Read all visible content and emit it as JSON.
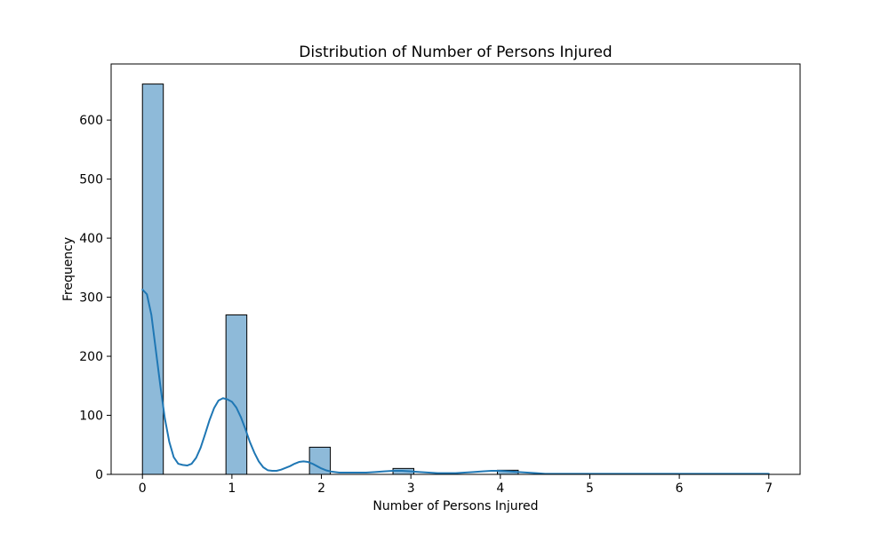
{
  "chart_data": {
    "type": "bar",
    "subtype": "histogram-with-kde",
    "title": "Distribution of Number of Persons Injured",
    "xlabel": "Number of Persons Injured",
    "ylabel": "Frequency",
    "xlim": [
      -0.35,
      7.35
    ],
    "ylim": [
      0,
      695
    ],
    "x_ticks": [
      0,
      1,
      2,
      3,
      4,
      5,
      6,
      7
    ],
    "y_ticks": [
      0,
      100,
      200,
      300,
      400,
      500,
      600
    ],
    "bin_width": 0.2333,
    "bins": [
      {
        "start": 0.0,
        "end": 0.2333,
        "value": 661
      },
      {
        "start": 0.9333,
        "end": 1.1667,
        "value": 270
      },
      {
        "start": 1.8667,
        "end": 2.1,
        "value": 46
      },
      {
        "start": 2.8,
        "end": 3.0333,
        "value": 10
      },
      {
        "start": 3.9667,
        "end": 4.2,
        "value": 7
      }
    ],
    "kde": {
      "x": [
        0.0,
        0.05,
        0.1,
        0.15,
        0.2,
        0.25,
        0.3,
        0.35,
        0.4,
        0.45,
        0.5,
        0.55,
        0.6,
        0.65,
        0.7,
        0.75,
        0.8,
        0.85,
        0.9,
        0.95,
        1.0,
        1.05,
        1.1,
        1.15,
        1.2,
        1.25,
        1.3,
        1.35,
        1.4,
        1.45,
        1.5,
        1.55,
        1.6,
        1.65,
        1.7,
        1.75,
        1.8,
        1.85,
        1.9,
        1.95,
        2.0,
        2.05,
        2.1,
        2.15,
        2.2,
        2.3,
        2.4,
        2.5,
        2.6,
        2.7,
        2.8,
        2.9,
        3.0,
        3.1,
        3.2,
        3.3,
        3.4,
        3.5,
        3.6,
        3.7,
        3.8,
        3.9,
        4.0,
        4.1,
        4.2,
        4.3,
        4.4,
        4.5,
        4.75,
        5.0,
        5.25,
        5.5,
        5.75,
        6.0,
        6.25,
        6.5,
        6.75,
        7.0
      ],
      "y": [
        313,
        305,
        270,
        210,
        150,
        95,
        55,
        29,
        18,
        16,
        15,
        18,
        28,
        45,
        68,
        92,
        112,
        125,
        129,
        127,
        123,
        113,
        97,
        77,
        55,
        37,
        22,
        12,
        7,
        6,
        6,
        8,
        11,
        14,
        18,
        21,
        22,
        21,
        18,
        14,
        10,
        7,
        5,
        4,
        3,
        3,
        3,
        3,
        4,
        5,
        6,
        6,
        5,
        4,
        3,
        2,
        2,
        2,
        3,
        4,
        5,
        6,
        6,
        5,
        4,
        3,
        2,
        1,
        1,
        1,
        1,
        1,
        1,
        1,
        1,
        1,
        1,
        1
      ]
    },
    "colors": {
      "bar_fill": "#8ebad9",
      "bar_edge": "#000000",
      "kde_line": "#1f77b4",
      "axes": "#000000",
      "background": "#ffffff"
    }
  }
}
